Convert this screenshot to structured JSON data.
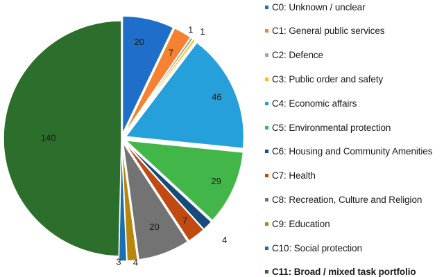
{
  "chart_data": {
    "type": "pie",
    "categories": [
      "C0: Unknown / unclear",
      "C1: General public services",
      "C2: Defence",
      "C3: Public order and safety",
      "C4: Economic affairs",
      "C5: Environmental protection",
      "C6: Housing and Community Amenities",
      "C7: Health",
      "C8: Recreation, Culture and Religion",
      "C9: Education",
      "C10: Social protection",
      "C11: Broad / mixed task portfolio"
    ],
    "values": [
      20,
      7,
      1,
      1,
      46,
      29,
      4,
      7,
      20,
      4,
      3,
      140
    ],
    "data_labels": [
      "20",
      "7",
      "1",
      "1",
      "46",
      "29",
      "4",
      "7",
      "20",
      "4",
      "3",
      "140"
    ],
    "colors": [
      "#1f6ec9",
      "#f58232",
      "#a6a6a6",
      "#ffc000",
      "#26a0da",
      "#42b649",
      "#174b7a",
      "#c04a12",
      "#737373",
      "#b8860b",
      "#1b6fb0",
      "#2c6e2c"
    ],
    "exploded": [
      true,
      true,
      true,
      true,
      true,
      true,
      true,
      true,
      true,
      true,
      true,
      false
    ],
    "legend_bold": [
      false,
      false,
      false,
      false,
      false,
      false,
      false,
      false,
      false,
      false,
      false,
      true
    ],
    "legend_position": "right",
    "start_angle_deg": 0,
    "direction": "clockwise"
  }
}
